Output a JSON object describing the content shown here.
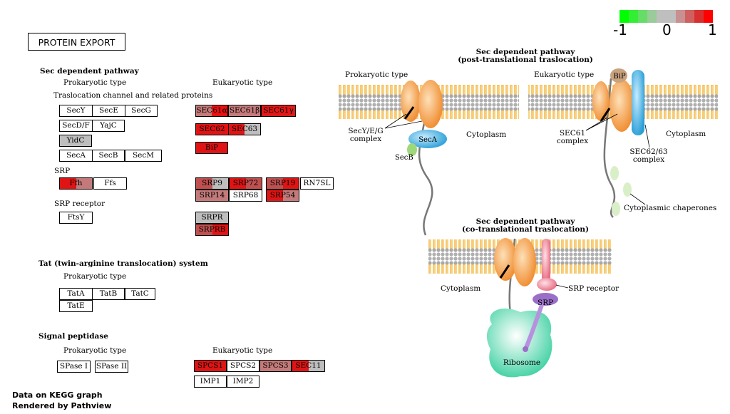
{
  "title": "PROTEIN EXPORT",
  "legend": {
    "min": "-1",
    "mid": "0",
    "max": "1",
    "colors": [
      "#00ff00",
      "#33ee33",
      "#66dd66",
      "#99cc99",
      "#bfbfbf",
      "#bfbfbf",
      "#c89090",
      "#d06060",
      "#d83030",
      "#ff0000"
    ]
  },
  "sections": {
    "sec": "Sec dependent pathway",
    "prok": "Prokaryotic type",
    "euk": "Eukaryotic type",
    "transloc": "Traslocation channel and related proteins",
    "srp": "SRP",
    "srp_receptor": "SRP receptor",
    "tat": "Tat (twin-arginine translocation) system",
    "tat_prok": "Prokaryotic type",
    "sigpep": "Signal peptidase",
    "sig_prok": "Prokaryotic type",
    "sig_euk": "Eukaryotic type"
  },
  "genes": [
    {
      "label": "SecY",
      "c1": "#ffffff",
      "c2": "#ffffff"
    },
    {
      "label": "SecE",
      "c1": "#ffffff",
      "c2": "#ffffff"
    },
    {
      "label": "SecG",
      "c1": "#ffffff",
      "c2": "#ffffff"
    },
    {
      "label": "SecD/F",
      "c1": "#ffffff",
      "c2": "#ffffff"
    },
    {
      "label": "YajC",
      "c1": "#ffffff",
      "c2": "#ffffff"
    },
    {
      "label": "YidC",
      "c1": "#bebebe",
      "c2": "#bebebe"
    },
    {
      "label": "SecA",
      "c1": "#ffffff",
      "c2": "#ffffff"
    },
    {
      "label": "SecB",
      "c1": "#ffffff",
      "c2": "#ffffff"
    },
    {
      "label": "SecM",
      "c1": "#ffffff",
      "c2": "#ffffff"
    },
    {
      "label": "SEC61α",
      "c1": "#c47a7a",
      "c2": "#e81010"
    },
    {
      "label": "SEC61β",
      "c1": "#c47a7a",
      "c2": "#c47a7a"
    },
    {
      "label": "SEC61γ",
      "c1": "#e01818",
      "c2": "#e01818"
    },
    {
      "label": "SEC62",
      "c1": "#e01414",
      "c2": "#e01414"
    },
    {
      "label": "SEC63",
      "c1": "#e01414",
      "c2": "#bebebe"
    },
    {
      "label": "BiP",
      "c1": "#e01414",
      "c2": "#e01414"
    },
    {
      "label": "Ffh",
      "c1": "#e01414",
      "c2": "#c47a7a"
    },
    {
      "label": "Ffs",
      "c1": "#ffffff",
      "c2": "#ffffff"
    },
    {
      "label": "SRP9",
      "c1": "#c05050",
      "c2": "#bebebe"
    },
    {
      "label": "SRP72",
      "c1": "#e01414",
      "c2": "#c05050"
    },
    {
      "label": "SRP19",
      "c1": "#c05050",
      "c2": "#e01414"
    },
    {
      "label": "RN7SL",
      "c1": "#ffffff",
      "c2": "#ffffff"
    },
    {
      "label": "SRP14",
      "c1": "#c47a7a",
      "c2": "#c47a7a"
    },
    {
      "label": "SRP68",
      "c1": "#ffffff",
      "c2": "#ffffff"
    },
    {
      "label": "SRP54",
      "c1": "#e01414",
      "c2": "#c47a7a"
    },
    {
      "label": "FtsY",
      "c1": "#ffffff",
      "c2": "#ffffff"
    },
    {
      "label": "SRPR",
      "c1": "#bebebe",
      "c2": "#bebebe"
    },
    {
      "label": "SRPRB",
      "c1": "#c05050",
      "c2": "#e01414"
    },
    {
      "label": "TatA",
      "c1": "#ffffff",
      "c2": "#ffffff"
    },
    {
      "label": "TatB",
      "c1": "#ffffff",
      "c2": "#ffffff"
    },
    {
      "label": "TatC",
      "c1": "#ffffff",
      "c2": "#ffffff"
    },
    {
      "label": "TatE",
      "c1": "#ffffff",
      "c2": "#ffffff"
    },
    {
      "label": "SPase I",
      "c1": "#ffffff",
      "c2": "#ffffff"
    },
    {
      "label": "SPase II",
      "c1": "#ffffff",
      "c2": "#ffffff"
    },
    {
      "label": "SPCS1",
      "c1": "#e01414",
      "c2": "#e01414"
    },
    {
      "label": "SPCS2",
      "c1": "#ffffff",
      "c2": "#ffffff"
    },
    {
      "label": "SPCS3",
      "c1": "#c47a7a",
      "c2": "#c47a7a"
    },
    {
      "label": "SEC11",
      "c1": "#e01414",
      "c2": "#bebebe"
    },
    {
      "label": "IMP1",
      "c1": "#ffffff",
      "c2": "#ffffff"
    },
    {
      "label": "IMP2",
      "c1": "#ffffff",
      "c2": "#ffffff"
    }
  ],
  "diagram": {
    "post_title1": "Sec dependent pathway",
    "post_title2": "(post-translational traslocation)",
    "prok_type": "Prokaryotic type",
    "euk_type": "Eukaryotic type",
    "secyeg1": "SecY/E/G",
    "secyeg2": "complex",
    "seca": "SecA",
    "secb": "SecB",
    "cytoplasm": "Cytoplasm",
    "bip": "BiP",
    "sec61_1": "SEC61",
    "sec61_2": "complex",
    "sec6263_1": "SEC62/63",
    "sec6263_2": "complex",
    "chaperones": "Cytoplasmic chaperones",
    "co_title1": "Sec dependent pathway",
    "co_title2": "(co-translational traslocation)",
    "srp_receptor": "SRP receptor",
    "srp": "SRP",
    "ribosome": "Ribosome"
  },
  "footer": {
    "line1": "Data on KEGG graph",
    "line2": "Rendered by Pathview"
  }
}
